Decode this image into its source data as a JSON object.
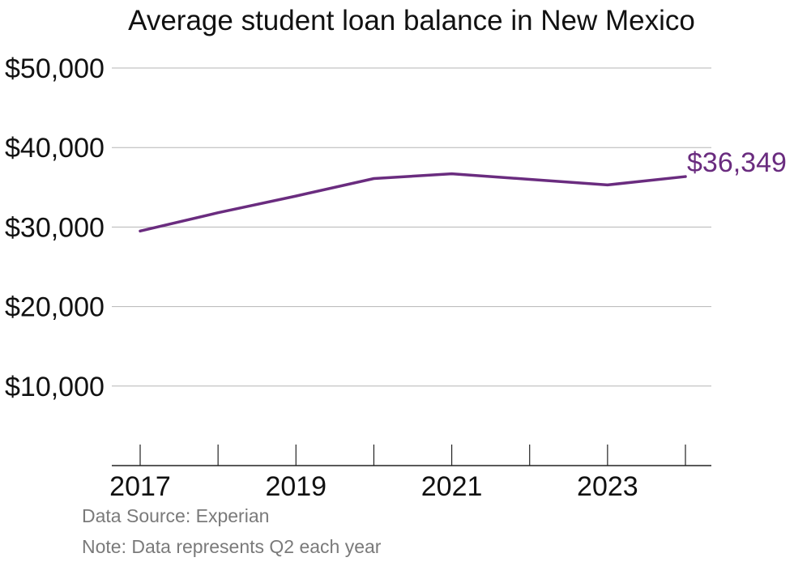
{
  "chart_data": {
    "type": "line",
    "title": "Average student loan balance in New Mexico",
    "xlabel": "",
    "ylabel": "",
    "x": [
      2017,
      2018,
      2019,
      2020,
      2021,
      2022,
      2023,
      2024
    ],
    "x_tick_labels": [
      "2017",
      "2019",
      "2021",
      "2023"
    ],
    "y_tick_labels": [
      "$10,000",
      "$20,000",
      "$30,000",
      "$40,000",
      "$50,000"
    ],
    "y_ticks": [
      10000,
      20000,
      30000,
      40000,
      50000
    ],
    "ylim": [
      0,
      50000
    ],
    "grid": true,
    "series": [
      {
        "values": [
          29500,
          31800,
          33900,
          36100,
          36700,
          36000,
          35300,
          36349
        ],
        "color": "#6a2c7f"
      }
    ],
    "end_label": "$36,349"
  },
  "footer": {
    "source": "Data Source: Experian",
    "note": "Note: Data represents Q2 each year"
  }
}
